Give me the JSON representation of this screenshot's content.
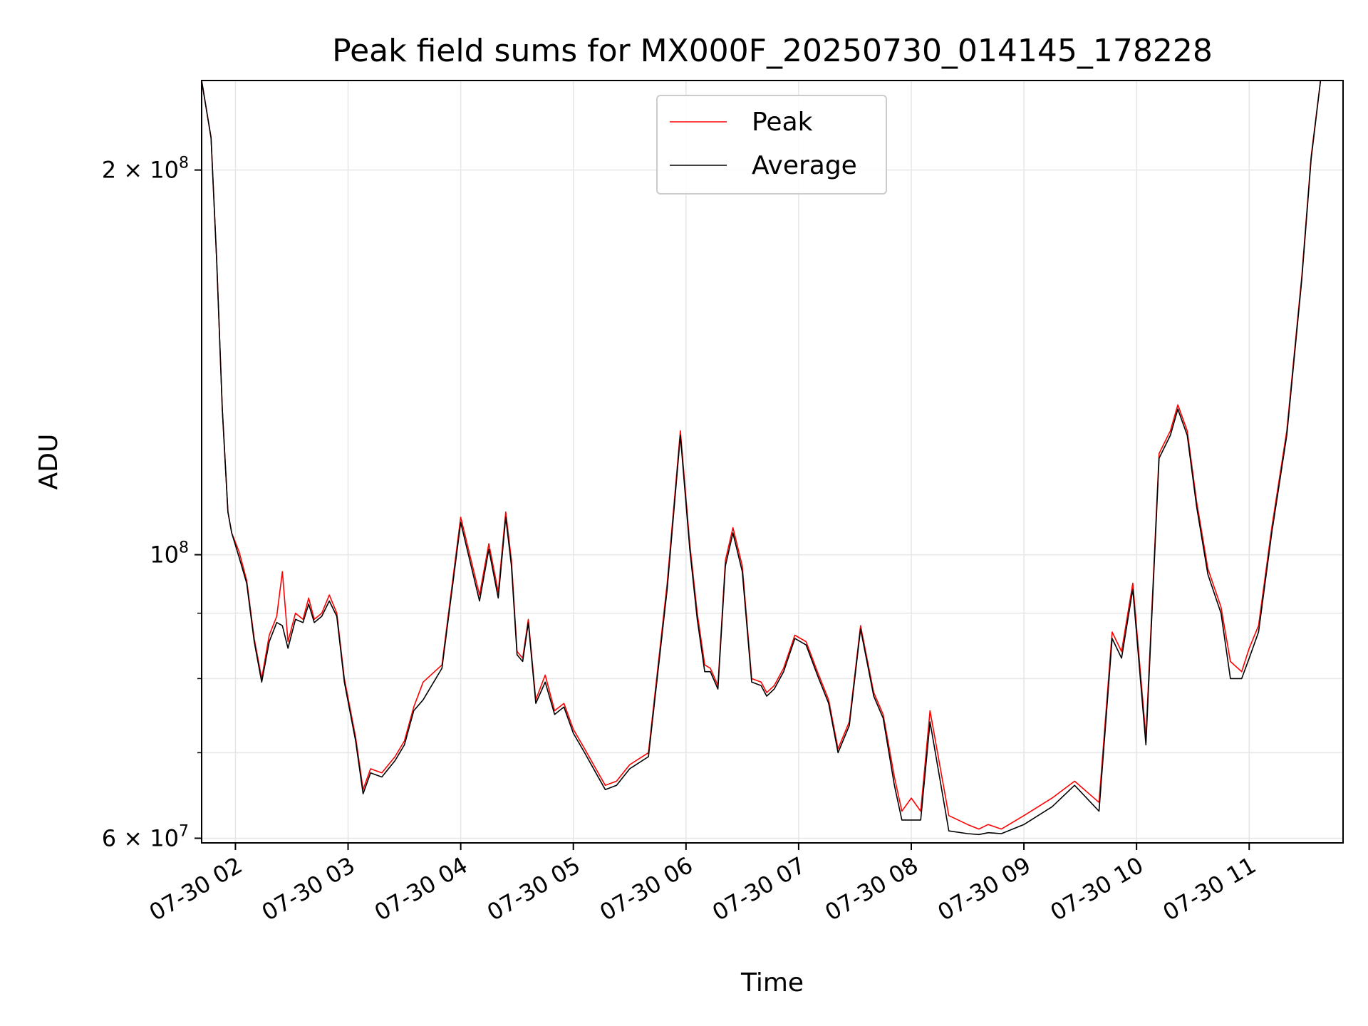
{
  "chart_data": {
    "type": "line",
    "title": "Peak field sums for MX000F_20250730_014145_178228",
    "xlabel": "Time",
    "ylabel": "ADU",
    "yscale": "log",
    "ylim": [
      59500000,
      235000000
    ],
    "xlim": [
      "07-30 01:42",
      "07-30 11:50"
    ],
    "grid": true,
    "legend": "upper center",
    "x_ticks": [
      {
        "value": "07-30 02:00",
        "label": "07-30 02"
      },
      {
        "value": "07-30 03:00",
        "label": "07-30 03"
      },
      {
        "value": "07-30 04:00",
        "label": "07-30 04"
      },
      {
        "value": "07-30 05:00",
        "label": "07-30 05"
      },
      {
        "value": "07-30 06:00",
        "label": "07-30 06"
      },
      {
        "value": "07-30 07:00",
        "label": "07-30 07"
      },
      {
        "value": "07-30 08:00",
        "label": "07-30 08"
      },
      {
        "value": "07-30 09:00",
        "label": "07-30 09"
      },
      {
        "value": "07-30 10:00",
        "label": "07-30 10"
      },
      {
        "value": "07-30 11:00",
        "label": "07-30 11"
      }
    ],
    "y_ticks": [
      {
        "value": 60000000,
        "base": "6",
        "exp": "7"
      },
      {
        "value": 100000000,
        "base": "10",
        "exp": "8"
      },
      {
        "value": 200000000,
        "base": "2",
        "exp": "8"
      }
    ],
    "y_minor_ticks": [
      70000000,
      80000000,
      90000000
    ],
    "colors": {
      "peak": "#ff0000",
      "average": "#000000",
      "grid": "#e6e6e6"
    },
    "x": [
      "07-30 01:42",
      "07-30 01:47",
      "07-30 01:50",
      "07-30 01:53",
      "07-30 01:56",
      "07-30 01:58",
      "07-30 02:02",
      "07-30 02:06",
      "07-30 02:10",
      "07-30 02:14",
      "07-30 02:18",
      "07-30 02:22",
      "07-30 02:25",
      "07-30 02:28",
      "07-30 02:32",
      "07-30 02:36",
      "07-30 02:39",
      "07-30 02:42",
      "07-30 02:46",
      "07-30 02:50",
      "07-30 02:54",
      "07-30 02:58",
      "07-30 03:04",
      "07-30 03:08",
      "07-30 03:12",
      "07-30 03:18",
      "07-30 03:25",
      "07-30 03:30",
      "07-30 03:35",
      "07-30 03:40",
      "07-30 03:50",
      "07-30 04:00",
      "07-30 04:10",
      "07-30 04:15",
      "07-30 04:20",
      "07-30 04:24",
      "07-30 04:27",
      "07-30 04:30",
      "07-30 04:33",
      "07-30 04:36",
      "07-30 04:40",
      "07-30 04:45",
      "07-30 04:50",
      "07-30 04:55",
      "07-30 05:00",
      "07-30 05:06",
      "07-30 05:12",
      "07-30 05:17",
      "07-30 05:23",
      "07-30 05:30",
      "07-30 05:40",
      "07-30 05:50",
      "07-30 05:57",
      "07-30 06:02",
      "07-30 06:06",
      "07-30 06:10",
      "07-30 06:13",
      "07-30 06:17",
      "07-30 06:21",
      "07-30 06:25",
      "07-30 06:30",
      "07-30 06:35",
      "07-30 06:40",
      "07-30 06:43",
      "07-30 06:47",
      "07-30 06:52",
      "07-30 06:58",
      "07-30 07:04",
      "07-30 07:10",
      "07-30 07:16",
      "07-30 07:21",
      "07-30 07:27",
      "07-30 07:33",
      "07-30 07:40",
      "07-30 07:45",
      "07-30 07:51",
      "07-30 07:55",
      "07-30 08:00",
      "07-30 08:05",
      "07-30 08:10",
      "07-30 08:20",
      "07-30 08:30",
      "07-30 08:36",
      "07-30 08:41",
      "07-30 08:48",
      "07-30 09:00",
      "07-30 09:15",
      "07-30 09:27",
      "07-30 09:40",
      "07-30 09:47",
      "07-30 09:52",
      "07-30 09:58",
      "07-30 10:05",
      "07-30 10:12",
      "07-30 10:18",
      "07-30 10:22",
      "07-30 10:27",
      "07-30 10:32",
      "07-30 10:38",
      "07-30 10:45",
      "07-30 10:50",
      "07-30 10:56",
      "07-30 11:00",
      "07-30 11:05",
      "07-30 11:12",
      "07-30 11:20",
      "07-30 11:28",
      "07-30 11:33",
      "07-30 11:38",
      "07-30 11:42",
      "07-30 11:50"
    ],
    "series": [
      {
        "name": "Peak",
        "values": [
          235000000,
          212000000,
          170000000,
          130000000,
          108000000,
          104000000,
          100500000,
          95500000,
          86000000,
          80000000,
          86500000,
          89500000,
          97000000,
          85500000,
          90000000,
          89000000,
          92500000,
          89000000,
          90000000,
          93000000,
          90000000,
          80000000,
          72000000,
          65500000,
          68000000,
          67500000,
          69500000,
          71500000,
          76000000,
          79500000,
          82000000,
          107000000,
          93000000,
          102000000,
          93500000,
          108000000,
          99000000,
          84000000,
          83000000,
          89000000,
          77000000,
          80500000,
          75500000,
          76500000,
          73000000,
          70500000,
          68000000,
          66000000,
          66500000,
          68500000,
          70000000,
          95000000,
          125000000,
          102000000,
          90000000,
          82000000,
          81500000,
          79000000,
          99000000,
          105000000,
          98000000,
          80000000,
          79500000,
          78000000,
          79000000,
          81500000,
          86500000,
          85500000,
          81000000,
          77000000,
          70500000,
          74000000,
          88000000,
          78000000,
          75000000,
          67000000,
          63000000,
          64500000,
          63000000,
          75500000,
          62500000,
          61500000,
          61000000,
          61500000,
          61000000,
          62500000,
          64500000,
          66500000,
          64000000,
          87000000,
          84000000,
          95000000,
          72000000,
          120000000,
          125000000,
          131000000,
          125000000,
          110000000,
          97500000,
          91000000,
          82500000,
          81000000,
          84500000,
          88000000,
          105000000,
          125000000,
          165000000,
          205000000,
          235000000,
          235000000,
          235000000
        ]
      },
      {
        "name": "Average",
        "values": [
          235000000,
          212000000,
          170000000,
          130000000,
          108000000,
          104000000,
          99500000,
          95000000,
          85500000,
          79500000,
          85500000,
          88500000,
          88000000,
          84500000,
          89000000,
          88500000,
          91500000,
          88500000,
          89500000,
          92000000,
          89500000,
          79500000,
          71500000,
          65000000,
          67500000,
          67000000,
          69000000,
          71000000,
          75500000,
          77000000,
          81500000,
          106000000,
          92000000,
          101000000,
          92500000,
          107000000,
          98000000,
          83500000,
          82500000,
          88500000,
          76500000,
          79500000,
          75000000,
          76000000,
          72500000,
          70000000,
          67500000,
          65500000,
          66000000,
          68000000,
          69500000,
          94000000,
          124000000,
          101000000,
          89000000,
          81000000,
          81000000,
          78500000,
          98000000,
          104000000,
          97000000,
          79500000,
          79000000,
          77500000,
          78500000,
          81000000,
          86000000,
          85000000,
          80500000,
          76500000,
          70000000,
          73500000,
          87500000,
          77500000,
          74500000,
          66000000,
          62000000,
          62000000,
          62000000,
          74000000,
          60800000,
          60500000,
          60400000,
          60600000,
          60500000,
          61500000,
          63500000,
          66000000,
          63000000,
          86000000,
          83000000,
          94000000,
          71000000,
          119000000,
          124000000,
          130000000,
          124000000,
          109000000,
          96500000,
          90000000,
          80000000,
          80000000,
          83000000,
          87000000,
          104000000,
          124000000,
          164000000,
          204000000,
          235000000,
          235000000,
          235000000
        ]
      }
    ]
  }
}
